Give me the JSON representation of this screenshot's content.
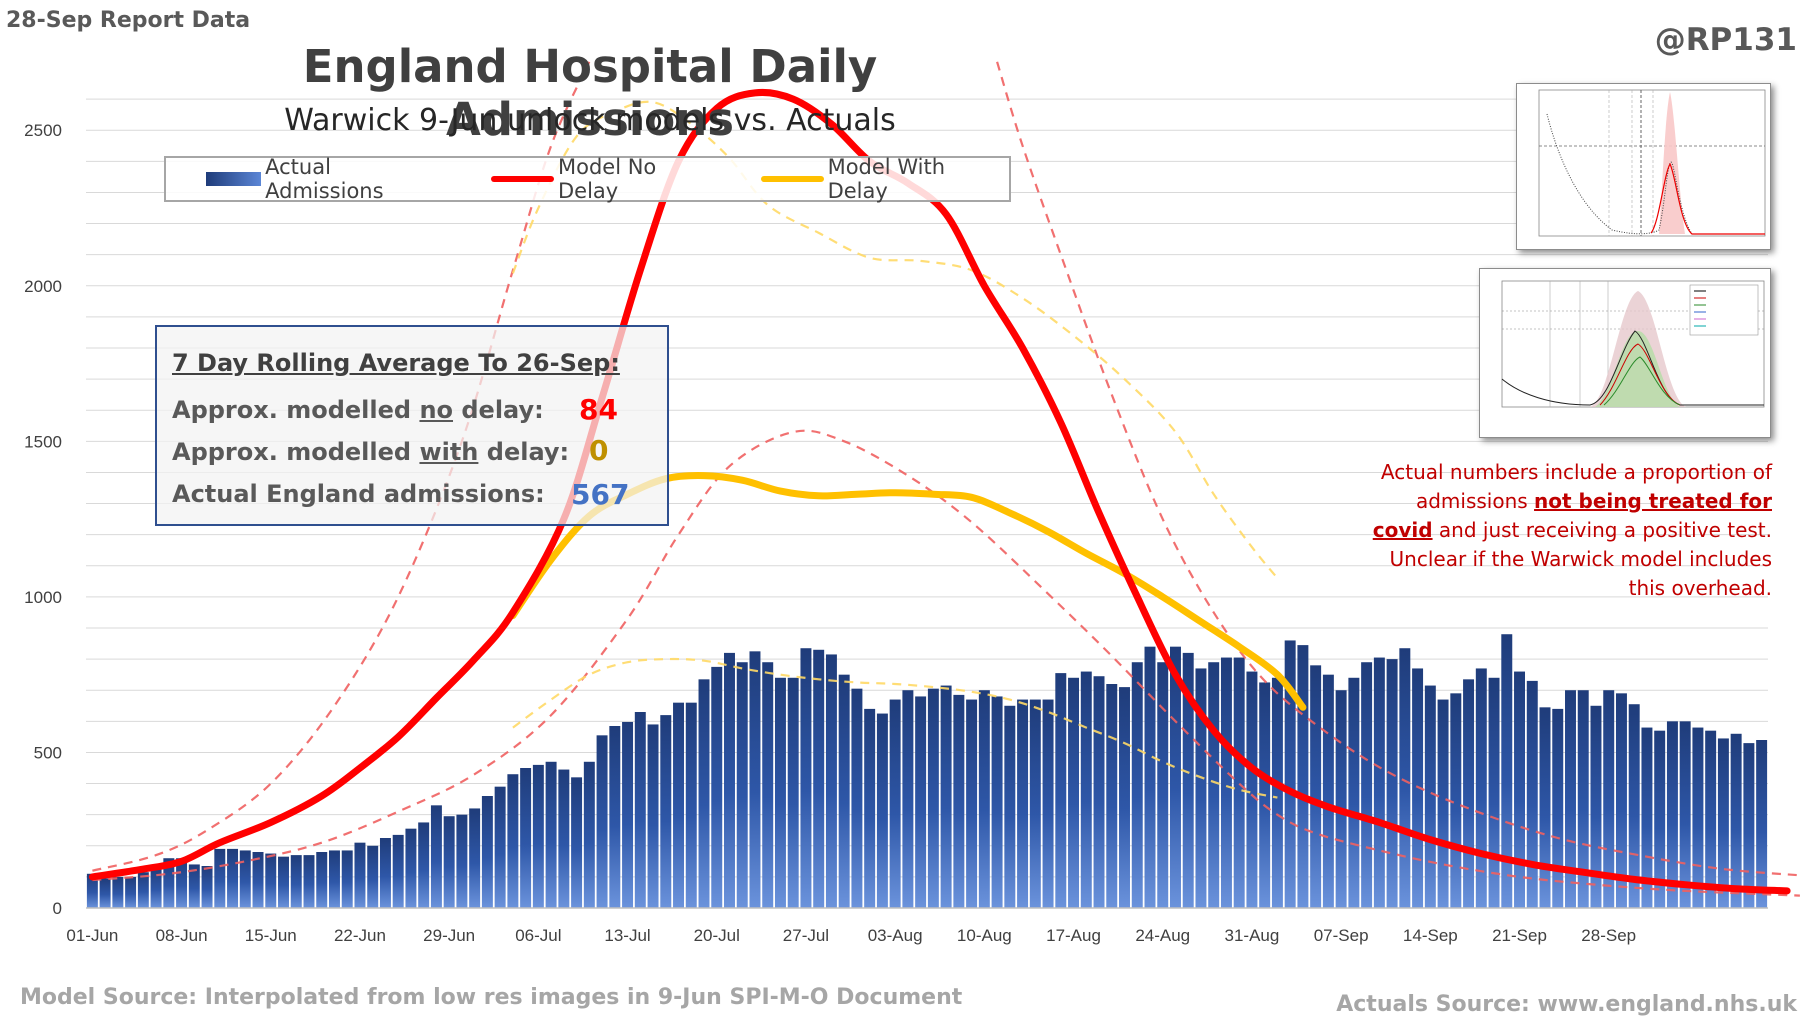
{
  "header": {
    "report_label": "28-Sep Report Data",
    "handle": "@RP131"
  },
  "chart_data": {
    "type": "bar",
    "title": "England Hospital Daily Admissions",
    "subtitle": "Warwick 9-Jun unlock models vs. Actuals",
    "ylim": [
      0,
      2700
    ],
    "yticks": [
      0,
      500,
      1000,
      1500,
      2000,
      2500
    ],
    "grid": true,
    "x_tick_labels": [
      "01-Jun",
      "08-Jun",
      "15-Jun",
      "22-Jun",
      "29-Jun",
      "06-Jul",
      "13-Jul",
      "20-Jul",
      "27-Jul",
      "03-Aug",
      "10-Aug",
      "17-Aug",
      "24-Aug",
      "31-Aug",
      "07-Sep",
      "14-Sep",
      "21-Sep",
      "28-Sep"
    ],
    "x_start": "01-Jun",
    "legend": {
      "position": "top",
      "entries": [
        "Actual Admissions",
        "Model No Delay",
        "Model With Delay"
      ]
    },
    "colors": {
      "bars_dark": "#1f3c7a",
      "bars_light": "#6b93dc",
      "no_delay": "#ff0000",
      "with_delay": "#ffc000",
      "no_delay_band": "#f06060",
      "with_delay_band": "#ffd966",
      "grid": "#d9d9d9"
    },
    "series": [
      {
        "name": "Actual Admissions",
        "type": "bar",
        "values": [
          110,
          95,
          100,
          100,
          115,
          130,
          160,
          160,
          140,
          135,
          190,
          190,
          185,
          180,
          175,
          165,
          170,
          170,
          180,
          185,
          185,
          210,
          200,
          225,
          235,
          255,
          275,
          330,
          295,
          300,
          320,
          360,
          390,
          430,
          450,
          460,
          470,
          445,
          420,
          470,
          555,
          585,
          598,
          630,
          590,
          620,
          660,
          660,
          735,
          775,
          820,
          790,
          825,
          790,
          740,
          740,
          835,
          830,
          815,
          750,
          705,
          640,
          625,
          670,
          700,
          680,
          705,
          715,
          685,
          670,
          700,
          680,
          650,
          670,
          670,
          670,
          755,
          740,
          760,
          745,
          720,
          710,
          790,
          840,
          790,
          840,
          820,
          770,
          790,
          805,
          805,
          760,
          725,
          740,
          860,
          845,
          780,
          750,
          700,
          740,
          790,
          805,
          800,
          835,
          770,
          715,
          670,
          690,
          735,
          770,
          740,
          880,
          760,
          730,
          645,
          640,
          700,
          700,
          650,
          700,
          690,
          655,
          580,
          570,
          600,
          600,
          580,
          570,
          545,
          560,
          530,
          540
        ]
      },
      {
        "name": "Model No Delay",
        "type": "line",
        "points": [
          [
            0,
            100
          ],
          [
            4,
            125
          ],
          [
            7,
            150
          ],
          [
            10,
            210
          ],
          [
            14,
            275
          ],
          [
            18,
            360
          ],
          [
            21,
            450
          ],
          [
            24,
            550
          ],
          [
            27,
            675
          ],
          [
            30,
            800
          ],
          [
            33,
            950
          ],
          [
            37,
            1250
          ],
          [
            40,
            1640
          ],
          [
            43,
            2050
          ],
          [
            46,
            2400
          ],
          [
            49,
            2570
          ],
          [
            52,
            2620
          ],
          [
            55,
            2600
          ],
          [
            58,
            2520
          ],
          [
            61,
            2400
          ],
          [
            64,
            2330
          ],
          [
            67,
            2230
          ],
          [
            70,
            2000
          ],
          [
            73,
            1800
          ],
          [
            76,
            1560
          ],
          [
            79,
            1270
          ],
          [
            82,
            1000
          ],
          [
            85,
            750
          ],
          [
            88,
            570
          ],
          [
            91,
            450
          ],
          [
            94,
            375
          ],
          [
            97,
            325
          ],
          [
            101,
            275
          ],
          [
            105,
            220
          ],
          [
            109,
            175
          ],
          [
            113,
            140
          ],
          [
            117,
            115
          ],
          [
            121,
            92
          ],
          [
            125,
            75
          ],
          [
            129,
            62
          ],
          [
            133,
            55
          ]
        ]
      },
      {
        "name": "Model With Delay",
        "type": "line",
        "points": [
          [
            33,
            940
          ],
          [
            36,
            1120
          ],
          [
            39,
            1260
          ],
          [
            42,
            1330
          ],
          [
            45,
            1380
          ],
          [
            48,
            1390
          ],
          [
            51,
            1375
          ],
          [
            54,
            1340
          ],
          [
            57,
            1325
          ],
          [
            60,
            1330
          ],
          [
            63,
            1335
          ],
          [
            66,
            1330
          ],
          [
            69,
            1320
          ],
          [
            72,
            1270
          ],
          [
            75,
            1210
          ],
          [
            78,
            1140
          ],
          [
            81,
            1075
          ],
          [
            84,
            1000
          ],
          [
            87,
            920
          ],
          [
            90,
            840
          ],
          [
            93,
            750
          ],
          [
            95,
            645
          ]
        ]
      }
    ],
    "no_delay_band_upper": [
      [
        0,
        120
      ],
      [
        5,
        170
      ],
      [
        9,
        250
      ],
      [
        14,
        400
      ],
      [
        19,
        650
      ],
      [
        24,
        1000
      ],
      [
        29,
        1500
      ],
      [
        33,
        2050
      ],
      [
        36,
        2450
      ],
      [
        39,
        2720
      ]
    ],
    "no_delay_band_upper_b": [
      [
        71,
        2720
      ],
      [
        73,
        2450
      ],
      [
        76,
        2100
      ],
      [
        80,
        1650
      ],
      [
        84,
        1250
      ],
      [
        88,
        950
      ],
      [
        92,
        730
      ],
      [
        97,
        560
      ],
      [
        102,
        430
      ],
      [
        108,
        320
      ],
      [
        115,
        225
      ],
      [
        122,
        165
      ],
      [
        128,
        125
      ],
      [
        134,
        105
      ]
    ],
    "no_delay_band_lower": [
      [
        0,
        90
      ],
      [
        6,
        110
      ],
      [
        12,
        150
      ],
      [
        18,
        210
      ],
      [
        24,
        310
      ],
      [
        30,
        430
      ],
      [
        36,
        620
      ],
      [
        42,
        930
      ],
      [
        46,
        1200
      ],
      [
        50,
        1420
      ],
      [
        55,
        1530
      ],
      [
        59,
        1500
      ],
      [
        64,
        1390
      ],
      [
        69,
        1240
      ],
      [
        75,
        1010
      ],
      [
        80,
        810
      ],
      [
        85,
        600
      ],
      [
        90,
        400
      ],
      [
        93,
        300
      ],
      [
        96,
        240
      ],
      [
        101,
        185
      ],
      [
        106,
        140
      ],
      [
        112,
        100
      ],
      [
        118,
        75
      ],
      [
        125,
        55
      ],
      [
        134,
        40
      ]
    ],
    "with_delay_band_upper": [
      [
        33,
        2040
      ],
      [
        35,
        2250
      ],
      [
        38,
        2480
      ],
      [
        41,
        2560
      ],
      [
        44,
        2590
      ],
      [
        47,
        2520
      ],
      [
        50,
        2410
      ],
      [
        53,
        2260
      ],
      [
        57,
        2170
      ],
      [
        61,
        2090
      ],
      [
        65,
        2080
      ],
      [
        69,
        2050
      ],
      [
        73,
        1960
      ],
      [
        77,
        1840
      ],
      [
        81,
        1700
      ],
      [
        85,
        1530
      ],
      [
        88,
        1330
      ],
      [
        91,
        1160
      ],
      [
        93,
        1060
      ]
    ],
    "with_delay_band_lower": [
      [
        33,
        580
      ],
      [
        36,
        670
      ],
      [
        39,
        750
      ],
      [
        42,
        790
      ],
      [
        45,
        800
      ],
      [
        48,
        795
      ],
      [
        51,
        770
      ],
      [
        54,
        750
      ],
      [
        57,
        735
      ],
      [
        60,
        725
      ],
      [
        63,
        720
      ],
      [
        66,
        710
      ],
      [
        69,
        695
      ],
      [
        72,
        670
      ],
      [
        75,
        630
      ],
      [
        78,
        580
      ],
      [
        81,
        530
      ],
      [
        84,
        470
      ],
      [
        87,
        420
      ],
      [
        90,
        380
      ],
      [
        93,
        355
      ]
    ]
  },
  "avg_box": {
    "heading": "7 Day Rolling Average To 26-Sep:",
    "rows": [
      {
        "pre": "Approx. modelled ",
        "u": "no",
        "post": " delay:",
        "value": "84",
        "color": "#ff0000"
      },
      {
        "pre": "Approx. modelled ",
        "u": "with",
        "post": " delay:",
        "value": "0",
        "color": "#bf9000"
      },
      {
        "pre": "Actual England admissions:",
        "u": "",
        "post": "",
        "value": "567",
        "color": "#4472c4"
      }
    ]
  },
  "note": {
    "pre": "Actual numbers include a proportion of admissions ",
    "bold": "not being treated for covid",
    "post": " and just receiving a positive test. Unclear if the Warwick model includes this overhead."
  },
  "sources": {
    "left": "Model Source: Interpolated from low res images in 9-Jun SPI-M-O Document",
    "right": "Actuals Source: www.england.nhs.uk"
  }
}
